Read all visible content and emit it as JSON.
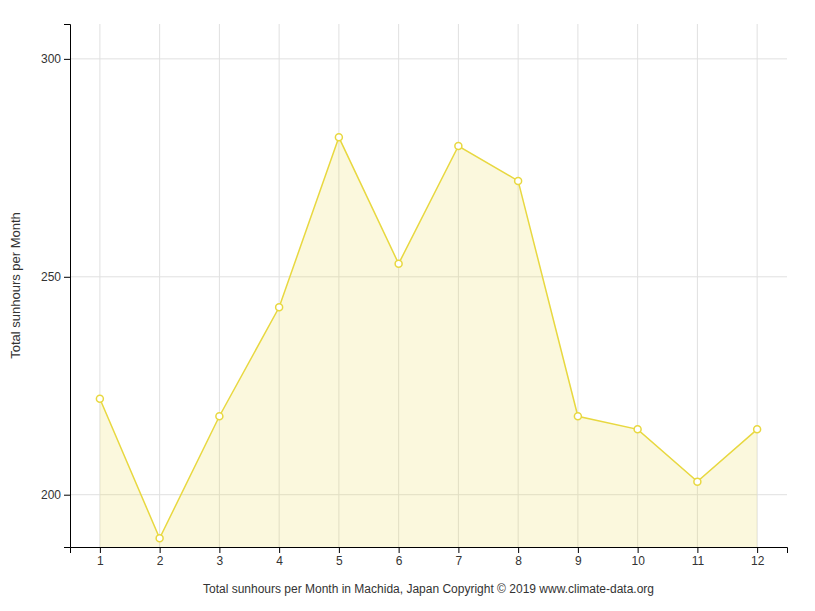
{
  "chart_data": {
    "type": "area",
    "xlabel": "Total sunhours per Month in Machida, Japan Copyright © 2019 www.climate-data.org",
    "ylabel": "Total sunhours per Month",
    "x": [
      1,
      2,
      3,
      4,
      5,
      6,
      7,
      8,
      9,
      10,
      11,
      12
    ],
    "values": [
      222,
      190,
      218,
      243,
      282,
      253,
      280,
      272,
      218,
      215,
      203,
      215
    ],
    "color": "#E8D840",
    "marker": "circle",
    "xlim": [
      0.5,
      12.5
    ],
    "xticks": [
      1,
      2,
      3,
      4,
      5,
      6,
      7,
      8,
      9,
      10,
      11,
      12
    ],
    "ylim": [
      188,
      308
    ],
    "yticks": [
      200,
      250,
      300
    ],
    "grid": true
  }
}
